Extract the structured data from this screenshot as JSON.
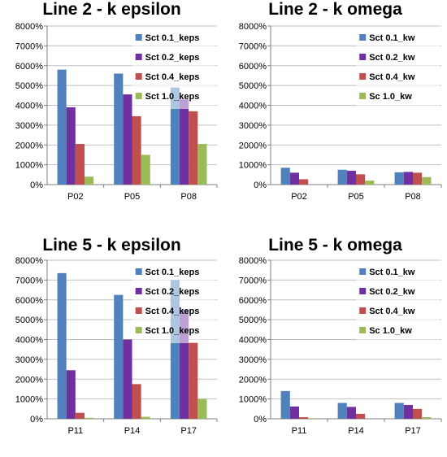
{
  "colors": {
    "s1": "#4f81bd",
    "s2": "#7030a0",
    "s3": "#c0504d",
    "s4": "#9bbb59",
    "grid": "#c0c0c0",
    "axis": "#7f7f7f"
  },
  "chart_data": [
    {
      "type": "bar",
      "title": "Line 2 - k epsilon",
      "categories": [
        "P02",
        "P05",
        "P08"
      ],
      "ylim": [
        0,
        8000
      ],
      "yticks": [
        "0%",
        "1000%",
        "2000%",
        "3000%",
        "4000%",
        "5000%",
        "6000%",
        "7000%",
        "8000%"
      ],
      "grid": true,
      "legend": "top-right",
      "series": [
        {
          "name": "Sct 0.1_keps",
          "values": [
            5800,
            5600,
            4900
          ]
        },
        {
          "name": "Sct 0.2_keps",
          "values": [
            3900,
            4550,
            4300
          ]
        },
        {
          "name": "Sct 0.4_keps",
          "values": [
            2050,
            3450,
            3700
          ]
        },
        {
          "name": "Sct 1.0_keps",
          "values": [
            400,
            1500,
            2050
          ]
        }
      ]
    },
    {
      "type": "bar",
      "title": "Line 2 - k omega",
      "categories": [
        "P02",
        "P05",
        "P08"
      ],
      "ylim": [
        0,
        8000
      ],
      "yticks": [
        "0%",
        "1000%",
        "2000%",
        "3000%",
        "4000%",
        "5000%",
        "6000%",
        "7000%",
        "8000%"
      ],
      "grid": true,
      "legend": "top-right",
      "series": [
        {
          "name": "Sct 0.1_kw",
          "values": [
            850,
            750,
            620
          ]
        },
        {
          "name": "Sct 0.2_kw",
          "values": [
            600,
            700,
            640
          ]
        },
        {
          "name": "Sct 0.4_kw",
          "values": [
            270,
            520,
            600
          ]
        },
        {
          "name": "Sc 1.0_kw",
          "values": [
            0,
            200,
            380
          ]
        }
      ]
    },
    {
      "type": "bar",
      "title": "Line 5 - k epsilon",
      "categories": [
        "P11",
        "P14",
        "P17"
      ],
      "ylim": [
        0,
        8000
      ],
      "yticks": [
        "0%",
        "1000%",
        "2000%",
        "3000%",
        "4000%",
        "5000%",
        "6000%",
        "7000%",
        "8000%"
      ],
      "grid": true,
      "legend": "top-right",
      "series": [
        {
          "name": "Sct 0.1_keps",
          "values": [
            7350,
            6250,
            7000
          ]
        },
        {
          "name": "Sct 0.2_keps",
          "values": [
            2450,
            4000,
            5500
          ]
        },
        {
          "name": "Sct 0.4_keps",
          "values": [
            300,
            1750,
            3850
          ]
        },
        {
          "name": "Sct 1.0_keps",
          "values": [
            50,
            100,
            1000
          ]
        }
      ]
    },
    {
      "type": "bar",
      "title": "Line 5 - k omega",
      "categories": [
        "P11",
        "P14",
        "P17"
      ],
      "ylim": [
        0,
        8000
      ],
      "yticks": [
        "0%",
        "1000%",
        "2000%",
        "3000%",
        "4000%",
        "5000%",
        "6000%",
        "7000%",
        "8000%"
      ],
      "grid": true,
      "legend": "top-right",
      "series": [
        {
          "name": "Sct 0.1_kw",
          "values": [
            1400,
            800,
            800
          ]
        },
        {
          "name": "Sct 0.2_kw",
          "values": [
            620,
            600,
            700
          ]
        },
        {
          "name": "Sct 0.4_kw",
          "values": [
            80,
            250,
            500
          ]
        },
        {
          "name": "Sc 1.0_kw",
          "values": [
            30,
            0,
            80
          ]
        }
      ]
    }
  ]
}
